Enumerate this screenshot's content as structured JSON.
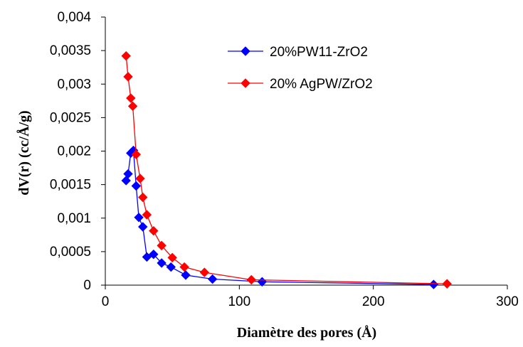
{
  "chart_data": {
    "type": "line",
    "title": "",
    "xlabel": "Diamètre des pores (Å)",
    "ylabel": "dV(r) (cc/Å/g)",
    "xlim": [
      0,
      300
    ],
    "ylim": [
      0,
      0.004
    ],
    "x_ticks": [
      {
        "value": 0,
        "label": "0"
      },
      {
        "value": 100,
        "label": "100"
      },
      {
        "value": 200,
        "label": "200"
      },
      {
        "value": 300,
        "label": "300"
      }
    ],
    "y_ticks": [
      {
        "value": 0,
        "label": "0"
      },
      {
        "value": 0.0005,
        "label": "0,0005"
      },
      {
        "value": 0.001,
        "label": "0,001"
      },
      {
        "value": 0.0015,
        "label": "0,0015"
      },
      {
        "value": 0.002,
        "label": "0,002"
      },
      {
        "value": 0.0025,
        "label": "0,0025"
      },
      {
        "value": 0.003,
        "label": "0,003"
      },
      {
        "value": 0.0035,
        "label": "0,0035"
      },
      {
        "value": 0.004,
        "label": "0,004"
      }
    ],
    "grid": false,
    "legend_position": "top-right",
    "series": [
      {
        "name": "20%PW11-ZrO2",
        "color": "#0000ff",
        "marker": "diamond",
        "points": [
          [
            15.5,
            0.00156
          ],
          [
            17,
            0.00166
          ],
          [
            19,
            0.00197
          ],
          [
            21,
            0.00201
          ],
          [
            23,
            0.00148
          ],
          [
            25,
            0.00101
          ],
          [
            28,
            0.00087
          ],
          [
            31,
            0.00042
          ],
          [
            36,
            0.00046
          ],
          [
            42,
            0.00033
          ],
          [
            49,
            0.00027
          ],
          [
            60,
            0.00015
          ],
          [
            80,
            9e-05
          ],
          [
            117,
            5e-05
          ],
          [
            245,
            1e-05
          ]
        ]
      },
      {
        "name": "20% AgPW/ZrO2",
        "color": "#ff0000",
        "marker": "diamond",
        "points": [
          [
            15.5,
            0.00342
          ],
          [
            17,
            0.00311
          ],
          [
            19,
            0.00279
          ],
          [
            20.5,
            0.00267
          ],
          [
            23,
            0.00195
          ],
          [
            26,
            0.00159
          ],
          [
            28,
            0.00131
          ],
          [
            31,
            0.00105
          ],
          [
            36,
            0.00081
          ],
          [
            42,
            0.00059
          ],
          [
            50,
            0.00041
          ],
          [
            59,
            0.00027
          ],
          [
            74,
            0.00019
          ],
          [
            109,
            8e-05
          ],
          [
            255,
            2e-05
          ]
        ]
      }
    ]
  }
}
